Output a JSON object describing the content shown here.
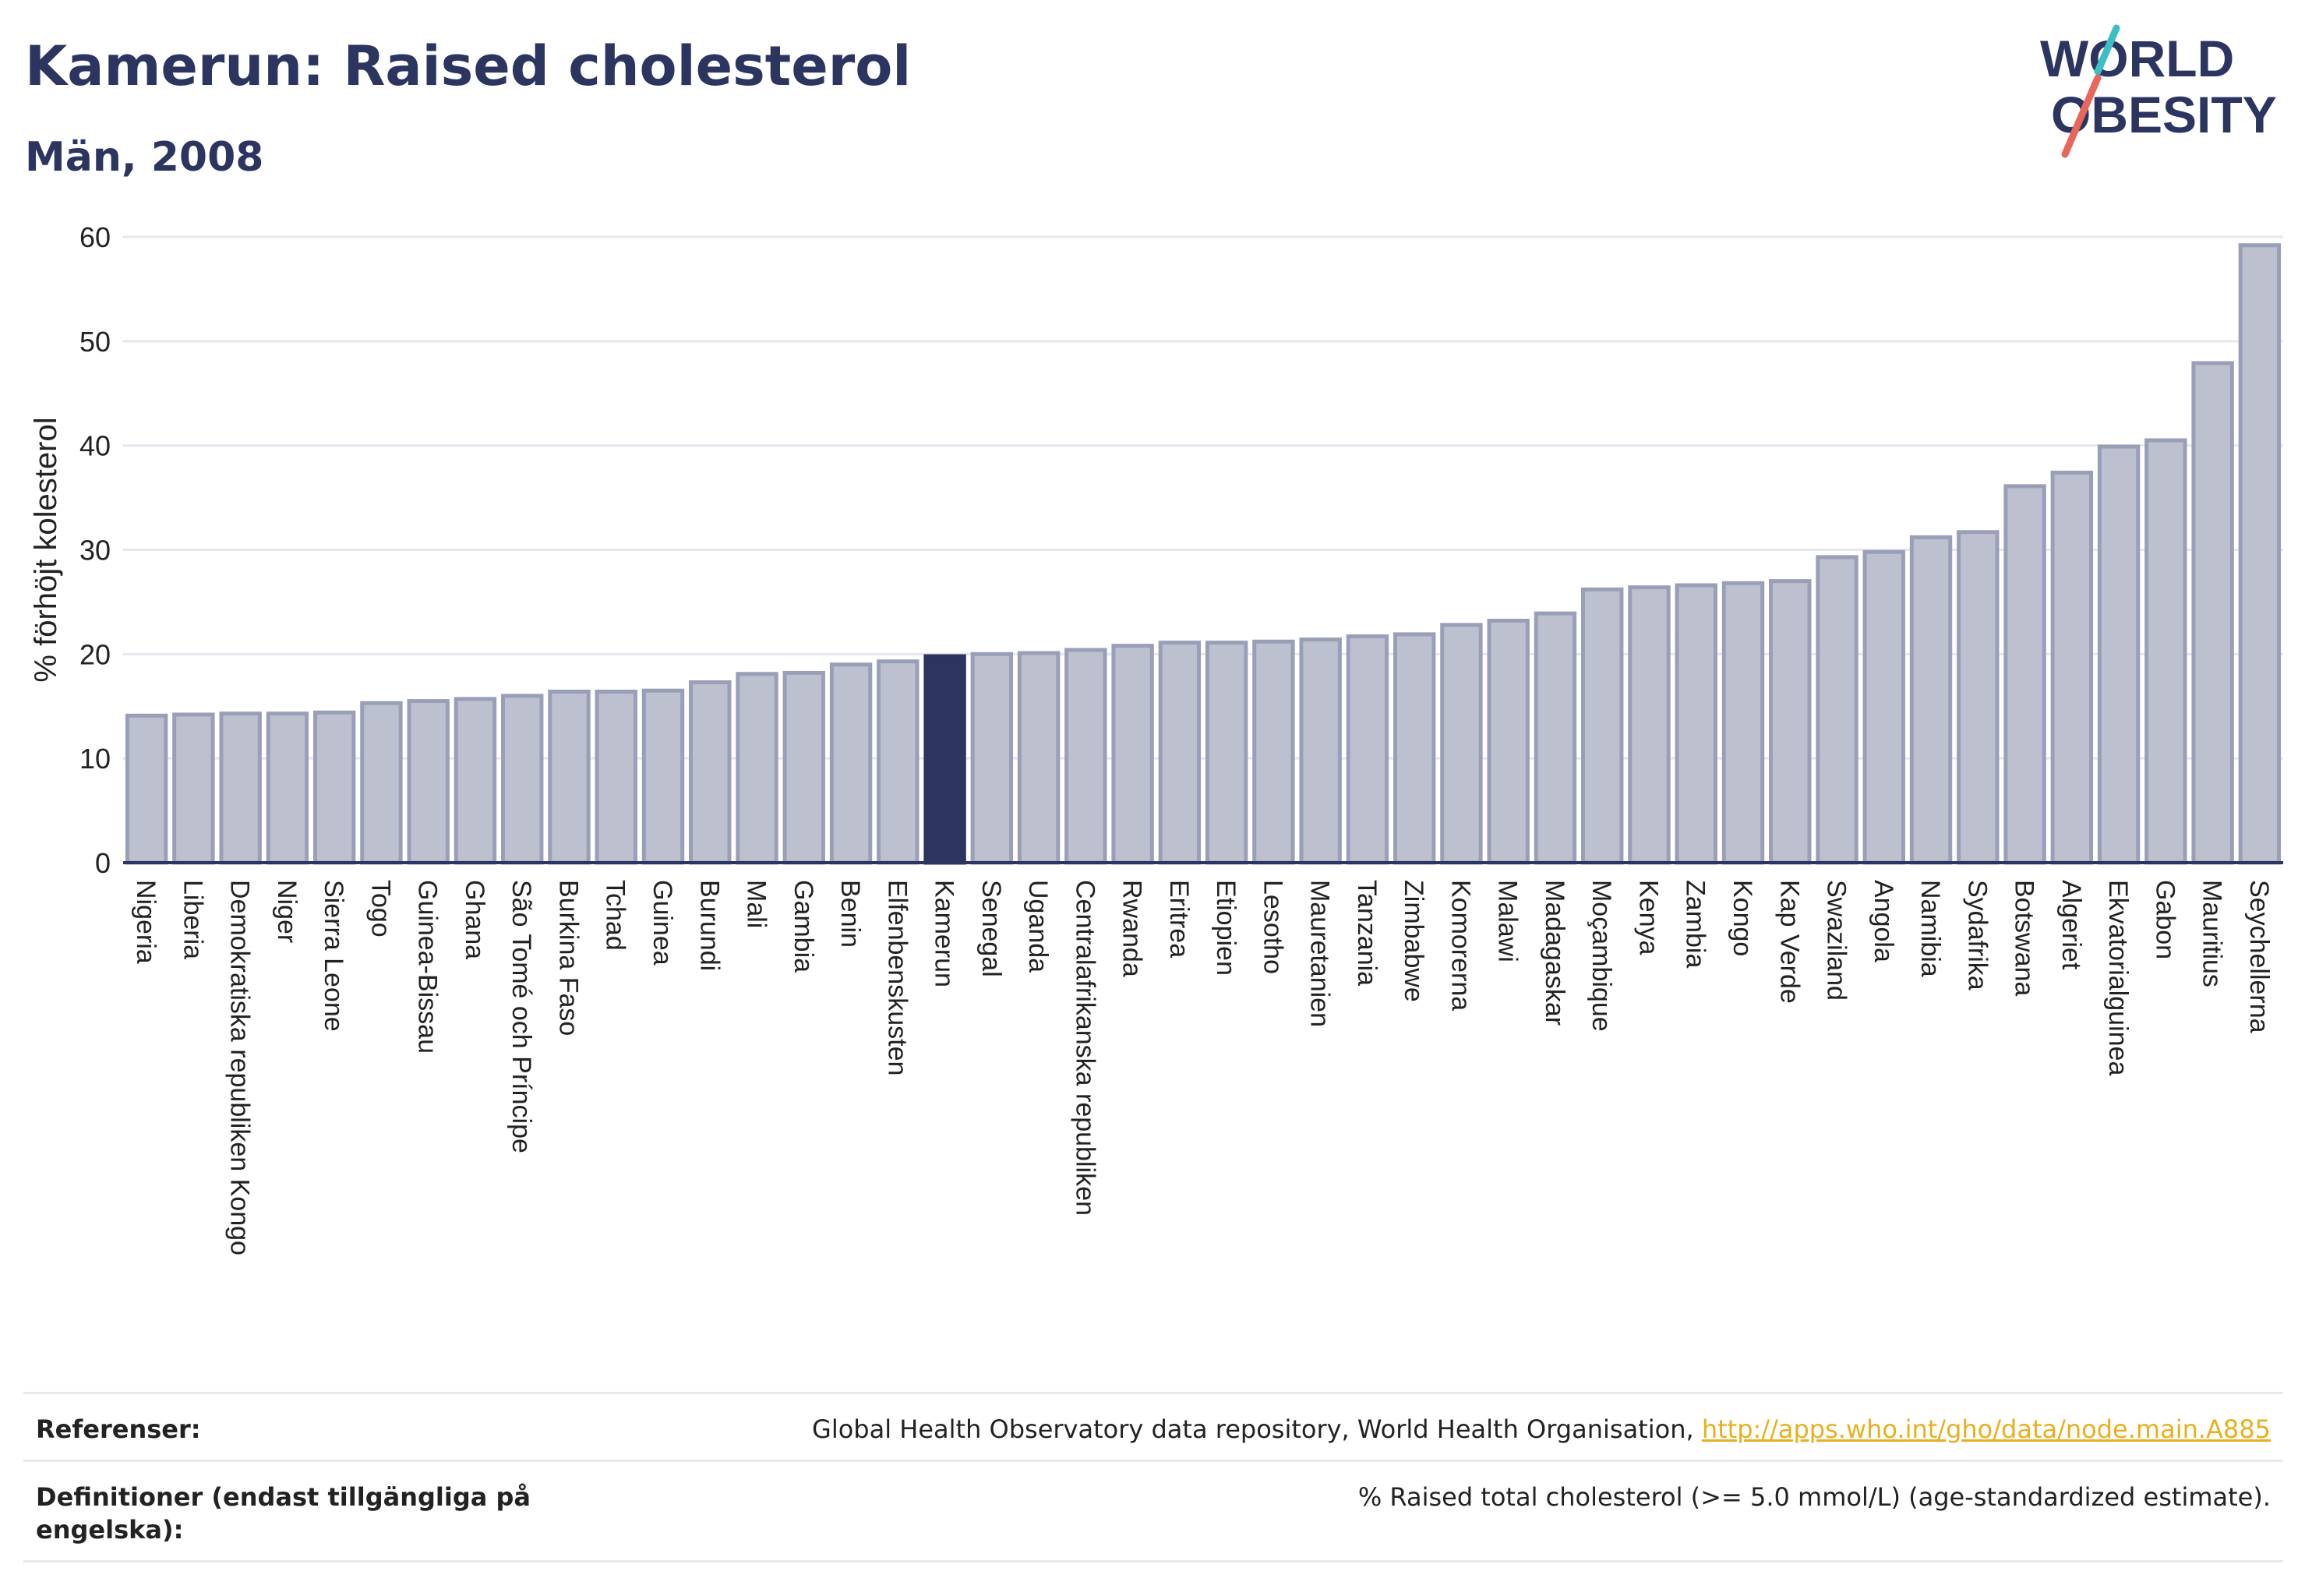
{
  "header": {
    "title": "Kamerun: Raised cholesterol",
    "subtitle": "Män, 2008"
  },
  "logo": {
    "line1": "WORLD",
    "line2": "OBESITY",
    "accent_teal": "#3bbfc4",
    "accent_red": "#e8665a",
    "text_color": "#2b3560"
  },
  "colors": {
    "bar_fill": "#bcc0cf",
    "bar_stroke": "#9a9fb8",
    "highlight_fill": "#2b3560",
    "grid": "#e6e7ee"
  },
  "chart_data": {
    "type": "bar",
    "ylabel": "% förhöjt kolesterol",
    "xlabel": "",
    "ylim": [
      0,
      60
    ],
    "yticks": [
      0,
      10,
      20,
      30,
      40,
      50,
      60
    ],
    "grid": true,
    "highlight": "Kamerun",
    "categories": [
      "Nigeria",
      "Liberia",
      "Demokratiska republiken Kongo",
      "Niger",
      "Sierra Leone",
      "Togo",
      "Guinea-Bissau",
      "Ghana",
      "São Tomé och Príncipe",
      "Burkina Faso",
      "Tchad",
      "Guinea",
      "Burundi",
      "Mali",
      "Gambia",
      "Benin",
      "Elfenbenskusten",
      "Kamerun",
      "Senegal",
      "Uganda",
      "Centralafrikanska republiken",
      "Rwanda",
      "Eritrea",
      "Etiopien",
      "Lesotho",
      "Mauretanien",
      "Tanzania",
      "Zimbabwe",
      "Komorerna",
      "Malawi",
      "Madagaskar",
      "Moçambique",
      "Kenya",
      "Zambia",
      "Kongo",
      "Kap Verde",
      "Swaziland",
      "Angola",
      "Namibia",
      "Sydafrika",
      "Botswana",
      "Algeriet",
      "Ekvatorialguinea",
      "Gabon",
      "Mauritius",
      "Seychellerna"
    ],
    "values": [
      14.1,
      14.2,
      14.3,
      14.3,
      14.4,
      15.3,
      15.5,
      15.7,
      16.0,
      16.4,
      16.4,
      16.5,
      17.3,
      18.1,
      18.2,
      19.0,
      19.3,
      19.8,
      20.0,
      20.1,
      20.4,
      20.8,
      21.1,
      21.1,
      21.2,
      21.4,
      21.7,
      21.9,
      22.8,
      23.2,
      23.9,
      26.2,
      26.4,
      26.6,
      26.8,
      27.0,
      29.3,
      29.8,
      31.2,
      31.7,
      36.1,
      37.4,
      39.9,
      40.5,
      47.9,
      59.2
    ]
  },
  "references": {
    "ref_label": "Referenser:",
    "ref_source": "Global Health Observatory data repository, World Health Organisation, ",
    "ref_link": "http://apps.who.int/gho/data/node.main.A885",
    "def_label": "Definitioner (endast tillgängliga på engelska):",
    "def_text": "% Raised total cholesterol (>= 5.0 mmol/L) (age-standardized estimate)."
  }
}
